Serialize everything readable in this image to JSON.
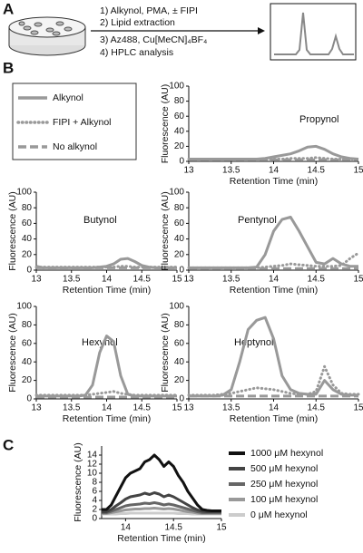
{
  "panels": [
    "A",
    "B",
    "C"
  ],
  "scheme": [
    "1) Alkynol, PMA, ± FIPI",
    "2) Lipid extraction",
    "3) Az488, Cu[MeCN]₄BF₄",
    "4) HPLC analysis"
  ],
  "legend": [
    {
      "name": "Alkynol",
      "color": "#999999",
      "dash": "solid"
    },
    {
      "name": "FIPI + Alkynol",
      "color": "#999999",
      "dash": "dotted"
    },
    {
      "name": "No alkynol",
      "color": "#999999",
      "dash": "dashed"
    }
  ],
  "chart_data": [
    {
      "type": "line",
      "title": "Propynol",
      "xlabel": "Retention Time (min)",
      "ylabel": "Fluorescence (AU)",
      "x": [
        13,
        13.1,
        13.2,
        13.3,
        13.4,
        13.5,
        13.6,
        13.7,
        13.8,
        13.9,
        14,
        14.1,
        14.2,
        14.3,
        14.4,
        14.5,
        14.6,
        14.7,
        14.8,
        14.9,
        15
      ],
      "xlim": [
        13,
        15
      ],
      "xticks": [
        13,
        13.5,
        14,
        14.5,
        15
      ],
      "ylim": [
        0,
        100
      ],
      "yticks": [
        0,
        20,
        40,
        60,
        80,
        100
      ],
      "series": [
        {
          "values": [
            3,
            3,
            3,
            3,
            3,
            3,
            3,
            3,
            3,
            4,
            6,
            8,
            10,
            14,
            19,
            20,
            16,
            10,
            6,
            4,
            3
          ]
        },
        {
          "values": [
            3,
            3,
            3,
            3,
            3,
            3,
            3,
            3,
            3,
            3,
            3,
            3,
            4,
            4,
            4,
            5,
            4,
            3,
            3,
            3,
            3
          ]
        },
        {
          "values": [
            2,
            2,
            2,
            2,
            2,
            2,
            2,
            2,
            2,
            2,
            2,
            2,
            2,
            2,
            2,
            2,
            2,
            2,
            2,
            2,
            2
          ]
        }
      ]
    },
    {
      "type": "line",
      "title": "Butynol",
      "xlabel": "Retention Time (min)",
      "ylabel": "Fluorescence (AU)",
      "x": [
        13,
        13.1,
        13.2,
        13.3,
        13.4,
        13.5,
        13.6,
        13.7,
        13.8,
        13.9,
        14,
        14.1,
        14.2,
        14.3,
        14.4,
        14.5,
        14.6,
        14.7,
        14.8,
        14.9,
        15
      ],
      "xlim": [
        13,
        15
      ],
      "xticks": [
        13,
        13.5,
        14,
        14.5,
        15
      ],
      "ylim": [
        0,
        100
      ],
      "yticks": [
        0,
        20,
        40,
        60,
        80,
        100
      ],
      "series": [
        {
          "values": [
            5,
            3,
            3,
            3,
            3,
            3,
            3,
            3,
            3,
            4,
            5,
            8,
            14,
            15,
            11,
            6,
            4,
            3,
            3,
            3,
            3
          ]
        },
        {
          "values": [
            4,
            4,
            4,
            4,
            4,
            4,
            4,
            4,
            4,
            4,
            4,
            4,
            5,
            5,
            4,
            4,
            4,
            4,
            4,
            4,
            4
          ]
        },
        {
          "values": [
            3,
            3,
            3,
            3,
            3,
            3,
            3,
            3,
            3,
            3,
            3,
            3,
            3,
            3,
            3,
            3,
            3,
            3,
            3,
            3,
            3
          ]
        }
      ]
    },
    {
      "type": "line",
      "title": "Pentynol",
      "xlabel": "Retention Time (min)",
      "ylabel": "Fluorescence (AU)",
      "x": [
        13,
        13.1,
        13.2,
        13.3,
        13.4,
        13.5,
        13.6,
        13.7,
        13.8,
        13.9,
        14,
        14.1,
        14.2,
        14.3,
        14.4,
        14.5,
        14.6,
        14.7,
        14.8,
        14.9,
        15
      ],
      "xlim": [
        13,
        15
      ],
      "xticks": [
        13,
        13.5,
        14,
        14.5,
        15
      ],
      "ylim": [
        0,
        100
      ],
      "yticks": [
        0,
        20,
        40,
        60,
        80,
        100
      ],
      "series": [
        {
          "values": [
            3,
            3,
            3,
            3,
            3,
            3,
            3,
            3,
            4,
            20,
            50,
            65,
            68,
            50,
            30,
            10,
            8,
            15,
            8,
            5,
            5
          ]
        },
        {
          "values": [
            3,
            3,
            3,
            3,
            3,
            3,
            3,
            3,
            3,
            4,
            5,
            6,
            8,
            7,
            6,
            5,
            5,
            5,
            6,
            15,
            22
          ]
        },
        {
          "values": [
            2,
            2,
            2,
            2,
            2,
            2,
            2,
            2,
            2,
            2,
            2,
            2,
            2,
            2,
            2,
            2,
            2,
            2,
            2,
            2,
            2
          ]
        }
      ]
    },
    {
      "type": "line",
      "title": "Hexynol",
      "xlabel": "Retention Time (min)",
      "ylabel": "Fluorescence (AU)",
      "x": [
        13,
        13.1,
        13.2,
        13.3,
        13.4,
        13.5,
        13.6,
        13.7,
        13.8,
        13.9,
        14,
        14.1,
        14.2,
        14.3,
        14.4,
        14.5,
        14.6,
        14.7,
        14.8,
        14.9,
        15
      ],
      "xlim": [
        13,
        15
      ],
      "xticks": [
        13,
        13.5,
        14,
        14.5,
        15
      ],
      "ylim": [
        0,
        100
      ],
      "yticks": [
        0,
        20,
        40,
        60,
        80,
        100
      ],
      "series": [
        {
          "values": [
            3,
            3,
            3,
            3,
            3,
            3,
            3,
            4,
            15,
            50,
            68,
            62,
            25,
            5,
            3,
            3,
            3,
            3,
            3,
            3,
            3
          ]
        },
        {
          "values": [
            4,
            4,
            4,
            4,
            4,
            4,
            4,
            4,
            5,
            6,
            7,
            8,
            6,
            5,
            4,
            4,
            4,
            4,
            4,
            4,
            4
          ]
        },
        {
          "values": [
            2,
            2,
            2,
            2,
            2,
            2,
            2,
            2,
            2,
            2,
            2,
            2,
            2,
            2,
            2,
            2,
            2,
            2,
            2,
            2,
            2
          ]
        }
      ]
    },
    {
      "type": "line",
      "title": "Heptynol",
      "xlabel": "Retention Time (min)",
      "ylabel": "Fluorescence (AU)",
      "x": [
        13,
        13.1,
        13.2,
        13.3,
        13.4,
        13.5,
        13.6,
        13.7,
        13.8,
        13.9,
        14,
        14.1,
        14.2,
        14.3,
        14.4,
        14.5,
        14.6,
        14.7,
        14.8,
        14.9,
        15
      ],
      "xlim": [
        13,
        15
      ],
      "xticks": [
        13,
        13.5,
        14,
        14.5,
        15
      ],
      "ylim": [
        0,
        100
      ],
      "yticks": [
        0,
        20,
        40,
        60,
        80,
        100
      ],
      "series": [
        {
          "values": [
            3,
            3,
            3,
            3,
            4,
            10,
            40,
            75,
            85,
            88,
            65,
            25,
            10,
            6,
            5,
            5,
            20,
            10,
            5,
            4,
            4
          ]
        },
        {
          "values": [
            4,
            4,
            4,
            4,
            5,
            6,
            8,
            10,
            12,
            11,
            10,
            8,
            6,
            5,
            5,
            8,
            35,
            15,
            6,
            5,
            5
          ]
        },
        {
          "values": [
            3,
            3,
            3,
            3,
            3,
            3,
            3,
            3,
            3,
            3,
            3,
            3,
            3,
            3,
            3,
            3,
            3,
            3,
            3,
            3,
            3
          ]
        }
      ]
    },
    {
      "type": "line",
      "xlabel": "Retention Time (min)",
      "ylabel": "Fluorescence (AU)",
      "x": [
        13.75,
        13.8,
        13.85,
        13.9,
        13.95,
        14,
        14.05,
        14.1,
        14.15,
        14.2,
        14.25,
        14.3,
        14.35,
        14.4,
        14.45,
        14.5,
        14.55,
        14.6,
        14.65,
        14.7,
        14.75,
        14.8,
        14.85,
        14.9,
        14.95,
        15
      ],
      "xlim": [
        13.75,
        15
      ],
      "xticks": [
        14,
        14.5,
        15
      ],
      "ylim": [
        0,
        16
      ],
      "yticks": [
        0,
        2,
        4,
        6,
        8,
        10,
        12,
        14
      ],
      "series": [
        {
          "name": "1000 μM hexynol",
          "color": "#111111",
          "values": [
            2,
            2,
            3,
            5,
            7,
            9,
            10,
            10.5,
            11,
            12.5,
            13,
            14,
            13,
            11.5,
            12.5,
            11.5,
            9.5,
            8,
            6,
            4.5,
            3,
            2,
            1.8,
            1.7,
            1.7,
            1.7
          ]
        },
        {
          "name": "500 μM hexynol",
          "color": "#444444",
          "values": [
            1.5,
            1.5,
            2,
            2.8,
            3.5,
            4.3,
            4.8,
            5,
            5.2,
            5.6,
            5.3,
            5.7,
            5.4,
            4.8,
            5.2,
            4.8,
            4.2,
            3.6,
            3,
            2.4,
            1.9,
            1.6,
            1.5,
            1.5,
            1.5,
            1.5
          ]
        },
        {
          "name": "250 μM hexynol",
          "color": "#666666",
          "values": [
            1.3,
            1.3,
            1.6,
            2,
            2.4,
            2.8,
            3,
            3.1,
            3.2,
            3.4,
            3.3,
            3.5,
            3.3,
            3,
            3.2,
            3,
            2.7,
            2.4,
            2.1,
            1.8,
            1.5,
            1.3,
            1.3,
            1.3,
            1.3,
            1.3
          ]
        },
        {
          "name": "100 μM hexynol",
          "color": "#999999",
          "values": [
            1.1,
            1.1,
            1.3,
            1.5,
            1.7,
            1.9,
            2,
            2.1,
            2.1,
            2.2,
            2.2,
            2.3,
            2.2,
            2.1,
            2.2,
            2.1,
            1.9,
            1.7,
            1.5,
            1.4,
            1.2,
            1.1,
            1.1,
            1.1,
            1.1,
            1.1
          ]
        },
        {
          "name": "0 μM hexynol",
          "color": "#cccccc",
          "values": [
            1,
            1,
            1,
            1,
            1.1,
            1.1,
            1.2,
            1.2,
            1.2,
            1.2,
            1.2,
            1.2,
            1.2,
            1.2,
            1.2,
            1.2,
            1.1,
            1.1,
            1.1,
            1,
            1,
            1,
            1,
            1,
            1,
            1
          ]
        }
      ]
    }
  ]
}
